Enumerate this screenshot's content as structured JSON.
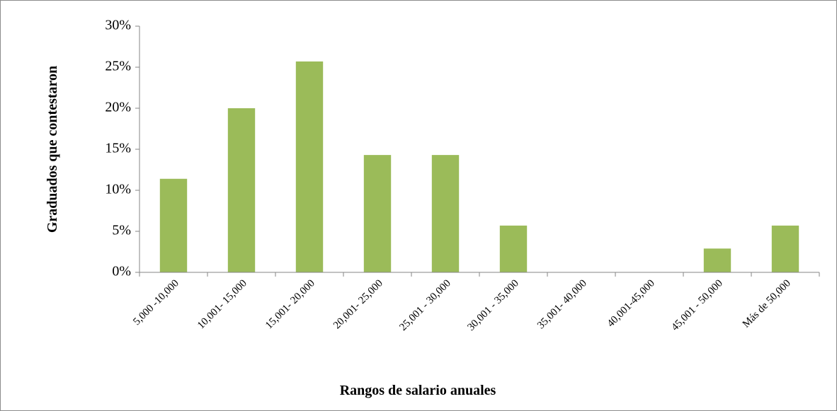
{
  "chart_data": {
    "type": "bar",
    "xlabel": "Rangos de salario anuales",
    "ylabel": "Graduados que contestaron",
    "categories": [
      "5,000 -10,000",
      "10,001- 15,000",
      "15,001- 20,000",
      "20,001- 25,000",
      "25,001 - 30,000",
      "30,001 - 35,000",
      "35,001- 40,000",
      "40,001-45,000",
      "45,001 - 50,000",
      "Más de 50,000"
    ],
    "values": [
      11.4,
      20,
      25.7,
      14.3,
      14.3,
      5.7,
      0,
      0,
      2.9,
      5.7
    ],
    "color": "#9bbb59",
    "ylim": [
      0,
      30
    ],
    "yticks": [
      {
        "value": 0,
        "label": "0%"
      },
      {
        "value": 5,
        "label": "5%"
      },
      {
        "value": 10,
        "label": "10%"
      },
      {
        "value": 15,
        "label": "15%"
      },
      {
        "value": 20,
        "label": "20%"
      },
      {
        "value": 25,
        "label": "25%"
      },
      {
        "value": 30,
        "label": "30%"
      }
    ],
    "grid": false
  }
}
